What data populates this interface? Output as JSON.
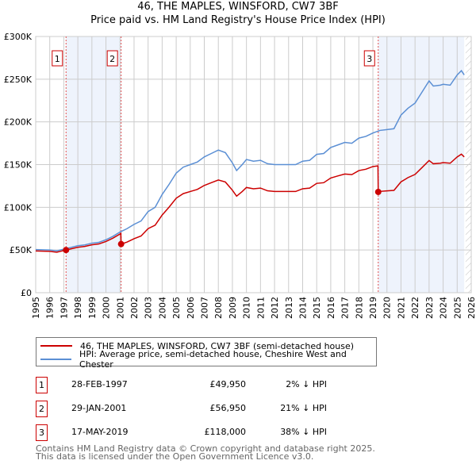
{
  "title": "46, THE MAPLES, WINSFORD, CW7 3BF",
  "subtitle": "Price paid vs. HM Land Registry's House Price Index (HPI)",
  "chart_data": {
    "type": "line",
    "title": "46, THE MAPLES, WINSFORD, CW7 3BF",
    "subtitle": "Price paid vs. HM Land Registry's House Price Index (HPI)",
    "xlim": [
      1995,
      2026
    ],
    "ylim": [
      0,
      300000
    ],
    "x_ticks": [
      "1995",
      "1996",
      "1997",
      "1998",
      "1999",
      "2000",
      "2001",
      "2002",
      "2003",
      "2004",
      "2005",
      "2006",
      "2007",
      "2008",
      "2009",
      "2010",
      "2011",
      "2012",
      "2013",
      "2014",
      "2015",
      "2016",
      "2017",
      "2018",
      "2019",
      "2020",
      "2021",
      "2022",
      "2023",
      "2024",
      "2025",
      "2026"
    ],
    "y_ticks": [
      {
        "v": 0,
        "label": "£0"
      },
      {
        "v": 50000,
        "label": "£50K"
      },
      {
        "v": 100000,
        "label": "£100K"
      },
      {
        "v": 150000,
        "label": "£150K"
      },
      {
        "v": 200000,
        "label": "£200K"
      },
      {
        "v": 250000,
        "label": "£250K"
      },
      {
        "v": 300000,
        "label": "£300K"
      }
    ],
    "grid": true,
    "colors": {
      "property": "#cc0000",
      "hpi": "#5b8fd4",
      "shade": "#eef3fc"
    },
    "series": [
      {
        "name": "46, THE MAPLES, WINSFORD, CW7 3BF (semi-detached house)",
        "x": [
          1995,
          1996,
          1996.5,
          1997,
          1997.16,
          1997.5,
          1998,
          1998.5,
          1999,
          1999.5,
          2000,
          2000.5,
          2001,
          2001.06,
          2001.08,
          2001.5,
          2002,
          2002.5,
          2003,
          2003.5,
          2004,
          2004.5,
          2005,
          2005.5,
          2006,
          2006.5,
          2007,
          2007.5,
          2008,
          2008.5,
          2009,
          2009.3,
          2009.7,
          2010,
          2010.5,
          2011,
          2011.5,
          2012,
          2013.5,
          2014,
          2014.5,
          2015,
          2015.5,
          2016,
          2016.5,
          2017,
          2017.5,
          2018,
          2018.5,
          2019,
          2019.36,
          2019.38,
          2019.5,
          2020,
          2020.5,
          2021,
          2021.5,
          2022,
          2022.5,
          2023,
          2023.3,
          2023.8,
          2024,
          2024.5,
          2025,
          2025.3,
          2025.5
        ],
        "y": [
          48900,
          48400,
          47400,
          49400,
          49950,
          51300,
          53200,
          54200,
          56100,
          57100,
          60000,
          63900,
          68700,
          69500,
          56950,
          59300,
          63200,
          66400,
          75000,
          79000,
          90900,
          100300,
          110600,
          116000,
          118500,
          120900,
          125600,
          128800,
          132000,
          129600,
          120000,
          113000,
          118500,
          123200,
          121700,
          122500,
          119300,
          118500,
          118500,
          121700,
          122500,
          128000,
          128800,
          134300,
          136700,
          139000,
          138300,
          143000,
          144600,
          147700,
          148500,
          118000,
          118600,
          119200,
          119800,
          129800,
          134800,
          138500,
          146600,
          154800,
          151000,
          151600,
          152300,
          151600,
          159000,
          162200,
          159000
        ]
      },
      {
        "name": "HPI: Average price, semi-detached house, Cheshire West and Chester",
        "x": [
          1995,
          1996,
          1996.5,
          1997,
          1997.5,
          1998,
          1998.5,
          1999,
          1999.5,
          2000,
          2000.5,
          2001,
          2001.5,
          2002,
          2002.5,
          2003,
          2003.5,
          2004,
          2004.5,
          2005,
          2005.5,
          2006,
          2006.5,
          2007,
          2007.5,
          2008,
          2008.5,
          2009,
          2009.3,
          2009.7,
          2010,
          2010.5,
          2011,
          2011.5,
          2012,
          2012.5,
          2013,
          2013.5,
          2014,
          2014.5,
          2015,
          2015.5,
          2016,
          2016.5,
          2017,
          2017.5,
          2018,
          2018.5,
          2019,
          2019.5,
          2020,
          2020.5,
          2021,
          2021.5,
          2022,
          2022.5,
          2023,
          2023.3,
          2023.8,
          2024,
          2024.5,
          2025,
          2025.3,
          2025.5
        ],
        "y": [
          50500,
          50000,
          49000,
          51000,
          53000,
          55000,
          56000,
          58000,
          59000,
          62000,
          66000,
          71000,
          75000,
          80000,
          84000,
          95000,
          100000,
          115000,
          127000,
          140000,
          147000,
          150000,
          153000,
          159000,
          163000,
          167000,
          164000,
          152000,
          143000,
          150000,
          156000,
          154000,
          155000,
          151000,
          150000,
          150000,
          150000,
          150000,
          154000,
          155000,
          162000,
          163000,
          170000,
          173000,
          176000,
          175000,
          181000,
          183000,
          187000,
          190000,
          191000,
          192000,
          208000,
          216000,
          222000,
          235000,
          248000,
          242000,
          243000,
          244000,
          243000,
          255000,
          260000,
          255000
        ]
      }
    ],
    "sales": [
      {
        "label": "1",
        "x": 1997.16,
        "date": "28-FEB-1997",
        "price": "£49,950",
        "price_value": 49950,
        "hpi": "2% ↓ HPI"
      },
      {
        "label": "2",
        "x": 2001.08,
        "date": "29-JAN-2001",
        "price": "£56,950",
        "price_value": 56950,
        "hpi": "21% ↓ HPI"
      },
      {
        "label": "3",
        "x": 2019.38,
        "date": "17-MAY-2019",
        "price": "£118,000",
        "price_value": 118000,
        "hpi": "38% ↓ HPI"
      }
    ],
    "shaded_ranges": [
      [
        1997.16,
        2001.08
      ],
      [
        2019.38,
        2025.5
      ]
    ],
    "forecast_hatch_from": 2025.6,
    "legend": "below"
  },
  "footer": [
    "Contains HM Land Registry data © Crown copyright and database right 2025.",
    "This data is licensed under the Open Government Licence v3.0."
  ]
}
